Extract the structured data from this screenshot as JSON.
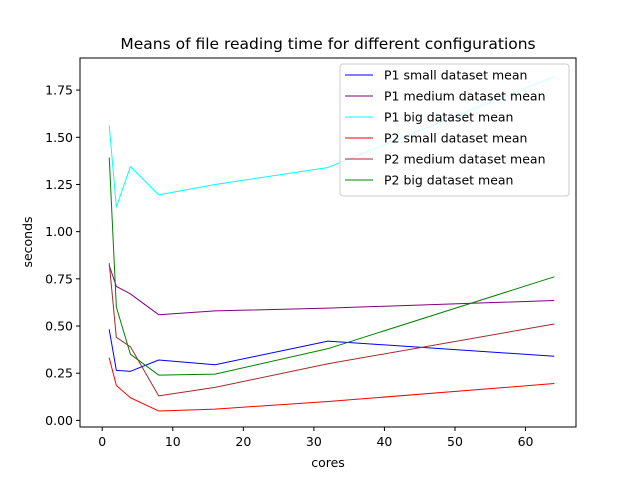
{
  "chart_data": {
    "type": "line",
    "title": "Means of file reading time for different configurations",
    "xlabel": "cores",
    "ylabel": "seconds",
    "xlim": [
      -3.15,
      67.15
    ],
    "ylim": [
      -0.035,
      1.92
    ],
    "x_ticks": [
      0,
      10,
      20,
      30,
      40,
      50,
      60
    ],
    "y_ticks": [
      0.0,
      0.25,
      0.5,
      0.75,
      1.0,
      1.25,
      1.5,
      1.75
    ],
    "y_tick_labels": [
      "0.00",
      "0.25",
      "0.50",
      "0.75",
      "1.00",
      "1.25",
      "1.50",
      "1.75"
    ],
    "grid": false,
    "legend_position": "upper right",
    "x": [
      1,
      2,
      4,
      8,
      16,
      32,
      64
    ],
    "series": [
      {
        "name": "P1 small dataset mean",
        "color": "#0000ff",
        "values": [
          0.48,
          0.265,
          0.26,
          0.32,
          0.295,
          0.42,
          0.34
        ]
      },
      {
        "name": "P1 medium dataset mean",
        "color": "#800080",
        "values": [
          0.82,
          0.71,
          0.67,
          0.56,
          0.58,
          0.595,
          0.635
        ]
      },
      {
        "name": "P1 big dataset mean",
        "color": "#00ffff",
        "values": [
          1.56,
          1.13,
          1.345,
          1.195,
          1.25,
          1.34,
          1.82
        ]
      },
      {
        "name": "P2 small dataset mean",
        "color": "#ff0000",
        "values": [
          0.33,
          0.185,
          0.12,
          0.05,
          0.06,
          0.1,
          0.195
        ]
      },
      {
        "name": "P2 medium dataset mean",
        "color": "#a52a2a",
        "values": [
          0.83,
          0.44,
          0.39,
          0.13,
          0.175,
          0.3,
          0.51
        ]
      },
      {
        "name": "P2 big dataset mean",
        "color": "#008000",
        "values": [
          1.39,
          0.6,
          0.35,
          0.24,
          0.245,
          0.38,
          0.76
        ]
      }
    ]
  }
}
